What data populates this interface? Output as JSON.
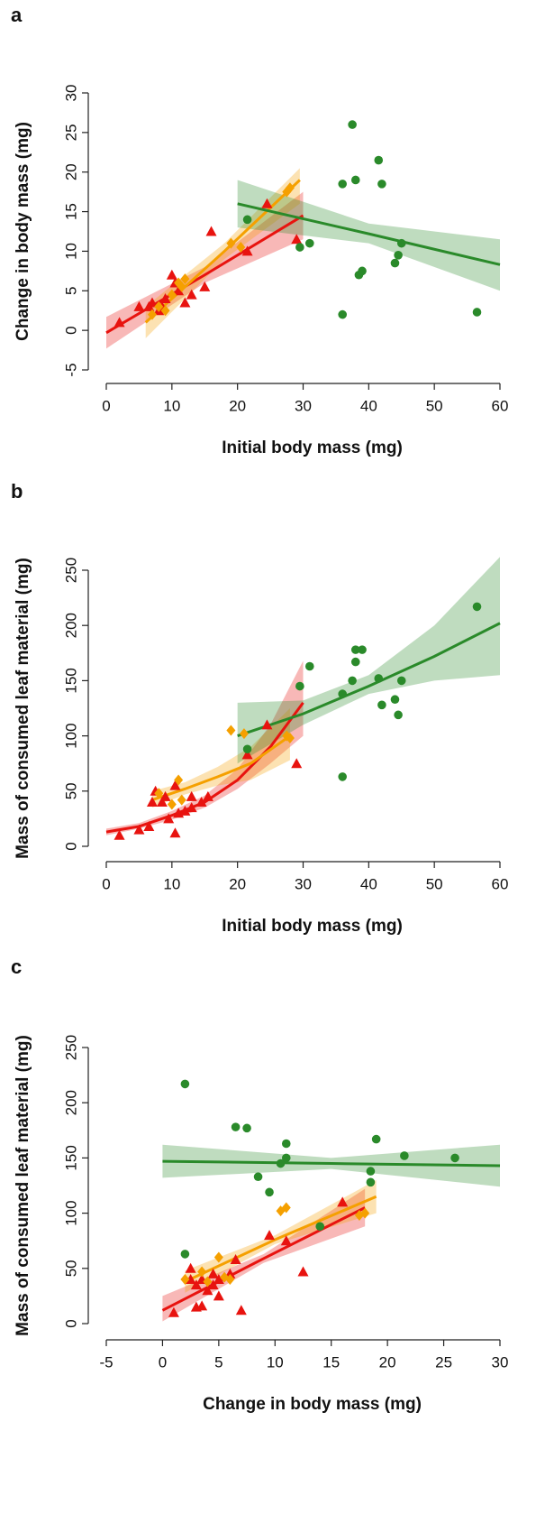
{
  "chart_data": [
    {
      "type": "scatter",
      "panel_label": "a",
      "xlabel": "Initial body mass (mg)",
      "ylabel": "Change in body mass (mg)",
      "xlim": [
        0,
        60
      ],
      "ylim": [
        -5,
        30
      ],
      "xticks": [
        0,
        10,
        20,
        30,
        40,
        50,
        60
      ],
      "yticks": [
        -5,
        0,
        5,
        10,
        15,
        20,
        25,
        30
      ],
      "series": [
        {
          "color": "#e8130f",
          "marker": "triangle",
          "x": [
            2,
            5,
            6.5,
            7,
            8,
            8.5,
            9,
            10,
            10.5,
            11,
            12,
            13,
            15,
            16,
            21.5,
            24.5,
            29
          ],
          "values": [
            1,
            3,
            3,
            3.5,
            2.5,
            3,
            4,
            7,
            6,
            5,
            3.5,
            4.5,
            5.5,
            12.5,
            10,
            16,
            11.5
          ]
        },
        {
          "color": "#f5a000",
          "marker": "diamond",
          "x": [
            7,
            8,
            9,
            10,
            11,
            11.5,
            12,
            19,
            20.5,
            27.5,
            28
          ],
          "values": [
            2,
            3,
            2.5,
            4.5,
            6,
            5.5,
            6.5,
            11,
            10.5,
            17.5,
            18
          ]
        },
        {
          "color": "#2a8a2a",
          "marker": "circle",
          "x": [
            21.5,
            29.5,
            31,
            36,
            36,
            37.5,
            38,
            38.5,
            39,
            41.5,
            42,
            44,
            44.5,
            45,
            56.5
          ],
          "values": [
            14,
            10.5,
            11,
            2,
            18.5,
            26,
            19,
            7,
            7.5,
            21.5,
            18.5,
            8.5,
            9.5,
            11,
            2.3
          ]
        }
      ],
      "fits": [
        {
          "color": "#e8130f",
          "x": [
            0,
            15,
            30
          ],
          "values": [
            -0.3,
            7,
            14.5
          ],
          "lower": [
            -2.3,
            6,
            11.5
          ],
          "upper": [
            1.7,
            8,
            17.5
          ]
        },
        {
          "color": "#f5a000",
          "x": [
            6,
            18,
            29.5
          ],
          "values": [
            1,
            10,
            19
          ],
          "lower": [
            -1,
            9,
            16
          ],
          "upper": [
            3,
            11,
            20.5
          ]
        },
        {
          "color": "#2a8a2a",
          "x": [
            20,
            40,
            60
          ],
          "values": [
            16,
            12.2,
            8.3
          ],
          "lower": [
            13,
            11,
            5
          ],
          "upper": [
            19,
            13.5,
            11.5
          ]
        }
      ]
    },
    {
      "type": "scatter",
      "panel_label": "b",
      "xlabel": "Initial body mass (mg)",
      "ylabel": "Mass of consumed leaf material (mg)",
      "xlim": [
        0,
        60
      ],
      "ylim": [
        0,
        250
      ],
      "xticks": [
        0,
        10,
        20,
        30,
        40,
        50,
        60
      ],
      "yticks": [
        0,
        50,
        100,
        150,
        200,
        250
      ],
      "series": [
        {
          "color": "#e8130f",
          "marker": "triangle",
          "x": [
            2,
            5,
            6.5,
            7,
            7.5,
            8.5,
            9,
            9.5,
            10.5,
            10.5,
            11,
            12,
            13,
            13,
            14.5,
            15.5,
            21.5,
            24.5,
            29
          ],
          "values": [
            10,
            15,
            18,
            40,
            50,
            40,
            45,
            25,
            12,
            55,
            30,
            32,
            35,
            45,
            40,
            45,
            83,
            110,
            75
          ]
        },
        {
          "color": "#f5a000",
          "marker": "diamond",
          "x": [
            8,
            10,
            11,
            11.5,
            19,
            21,
            27.5,
            28
          ],
          "values": [
            48,
            38,
            60,
            42,
            105,
            102,
            100,
            98
          ]
        },
        {
          "color": "#2a8a2a",
          "marker": "circle",
          "x": [
            21.5,
            29.5,
            31,
            36,
            36,
            37.5,
            38,
            38,
            39,
            41.5,
            42,
            44,
            44.5,
            45,
            56.5
          ],
          "values": [
            88,
            145,
            163,
            63,
            138,
            150,
            167,
            178,
            178,
            152,
            128,
            133,
            119,
            150,
            217
          ]
        }
      ],
      "fits": [
        {
          "color": "#e8130f",
          "x": [
            0,
            5,
            10,
            15,
            20,
            25,
            30
          ],
          "values": [
            13,
            18,
            28,
            40,
            60,
            90,
            130
          ],
          "lower": [
            10,
            16,
            24,
            35,
            52,
            75,
            100
          ],
          "upper": [
            16,
            21,
            32,
            46,
            70,
            110,
            168
          ]
        },
        {
          "color": "#f5a000",
          "x": [
            7,
            12,
            17,
            22,
            28
          ],
          "values": [
            42,
            52,
            63,
            75,
            100
          ],
          "lower": [
            35,
            47,
            55,
            60,
            78
          ],
          "upper": [
            50,
            58,
            72,
            90,
            125
          ]
        },
        {
          "color": "#2a8a2a",
          "x": [
            20,
            30,
            40,
            50,
            60
          ],
          "values": [
            100,
            120,
            145,
            172,
            202
          ],
          "lower": [
            75,
            110,
            138,
            150,
            155
          ],
          "upper": [
            130,
            132,
            155,
            200,
            262
          ]
        }
      ]
    },
    {
      "type": "scatter",
      "panel_label": "c",
      "xlabel": "Change in body mass (mg)",
      "ylabel": "Mass of consumed leaf material (mg)",
      "xlim": [
        -5,
        30
      ],
      "ylim": [
        0,
        250
      ],
      "xticks": [
        -5,
        0,
        5,
        10,
        15,
        20,
        25,
        30
      ],
      "yticks": [
        0,
        50,
        100,
        150,
        200,
        250
      ],
      "series": [
        {
          "color": "#e8130f",
          "marker": "triangle",
          "x": [
            1,
            2.5,
            2.5,
            3,
            3,
            3.5,
            3.5,
            4,
            4.5,
            4.5,
            5,
            5,
            6,
            6.5,
            7,
            9.5,
            11,
            12.5,
            16
          ],
          "values": [
            10,
            50,
            40,
            35,
            15,
            16,
            40,
            30,
            45,
            35,
            25,
            40,
            45,
            58,
            12,
            80,
            75,
            47,
            110
          ]
        },
        {
          "color": "#f5a000",
          "marker": "diamond",
          "x": [
            2,
            3.5,
            4,
            5,
            5.5,
            6,
            10.5,
            11,
            17.5,
            18
          ],
          "values": [
            40,
            47,
            38,
            60,
            42,
            40,
            102,
            105,
            98,
            100
          ]
        },
        {
          "color": "#2a8a2a",
          "marker": "circle",
          "x": [
            2,
            2,
            6.5,
            7.5,
            8.5,
            9.5,
            10.5,
            11,
            11,
            14,
            18.5,
            18.5,
            19,
            21.5,
            26
          ],
          "values": [
            217,
            63,
            178,
            177,
            133,
            119,
            145,
            150,
            163,
            88,
            128,
            138,
            167,
            152,
            150
          ]
        }
      ],
      "fits": [
        {
          "color": "#e8130f",
          "x": [
            0,
            9,
            18
          ],
          "values": [
            12,
            59,
            105
          ],
          "lower": [
            2,
            55,
            88
          ],
          "upper": [
            25,
            63,
            122
          ]
        },
        {
          "color": "#f5a000",
          "x": [
            2,
            10,
            19
          ],
          "values": [
            38,
            76,
            115
          ],
          "lower": [
            28,
            72,
            100
          ],
          "upper": [
            48,
            80,
            130
          ]
        },
        {
          "color": "#2a8a2a",
          "x": [
            0,
            15,
            30
          ],
          "values": [
            147,
            145,
            143
          ],
          "lower": [
            132,
            140,
            124
          ],
          "upper": [
            162,
            150,
            162
          ]
        }
      ]
    }
  ]
}
